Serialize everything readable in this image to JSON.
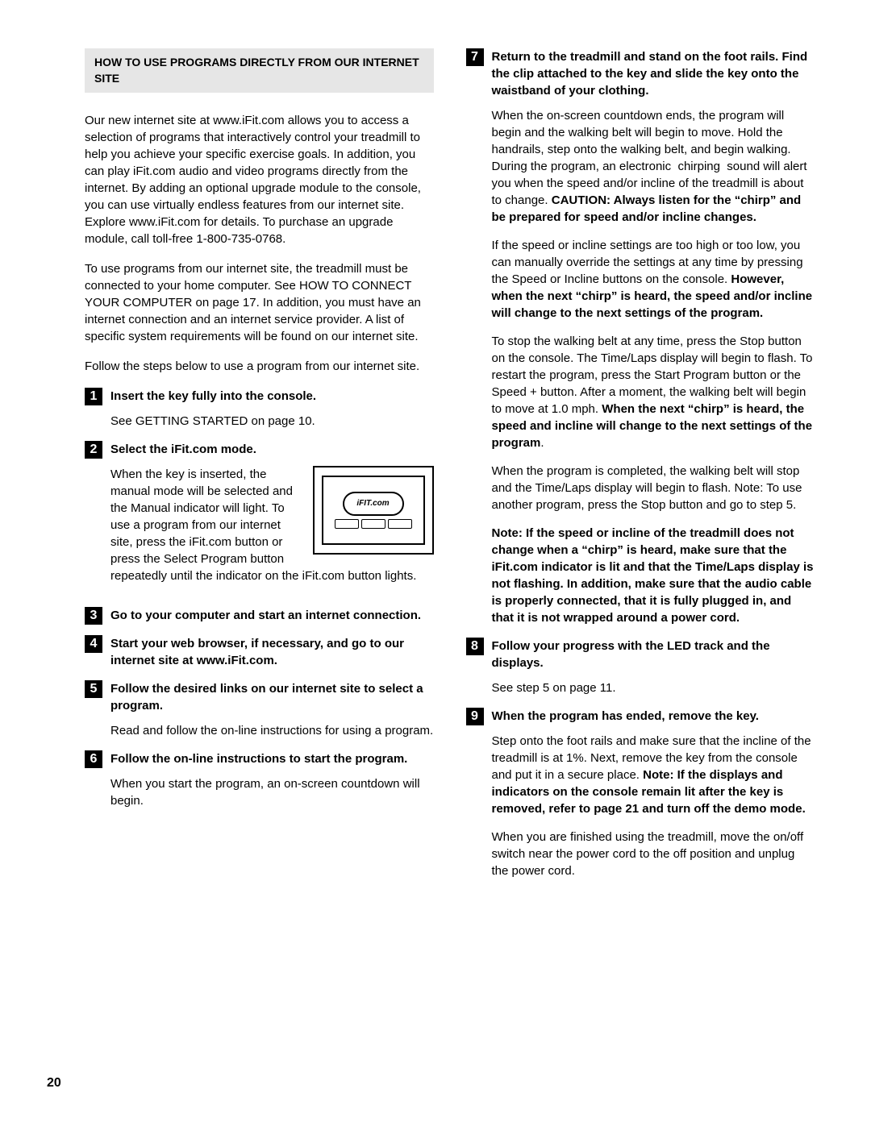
{
  "page_number": "20",
  "header": "HOW TO USE PROGRAMS DIRECTLY FROM OUR INTERNET SITE",
  "intro1": "Our new internet site at www.iFit.com allows you to access a selection of programs that interactively control your treadmill to help you achieve your specific exercise goals. In addition, you can play iFit.com audio and video programs directly from the internet. By adding an optional upgrade module to the console, you can use virtually endless features from our internet site. Explore www.iFit.com for details. To purchase an upgrade module, call toll-free 1-800-735-0768.",
  "intro2": "To use programs from our internet site, the treadmill must be connected to your home computer. See HOW TO CONNECT YOUR COMPUTER on page 17. In addition, you must have an internet connection and an internet service provider. A list of specific system requirements will be found on our internet site.",
  "intro3": "Follow the steps below to use a program from our internet site.",
  "steps": {
    "s1": {
      "n": "1",
      "title": "Insert the key fully into the console.",
      "body": "See GETTING STARTED on page 10."
    },
    "s2": {
      "n": "2",
      "title": "Select the iFit.com mode.",
      "body": "When the key is inserted, the manual mode will be selected and the Manual indicator will light. To use a program from our internet site, press the iFit.com button or press the Select Program button repeatedly until the indicator on the iFit.com button lights."
    },
    "s3": {
      "n": "3",
      "title": "Go to your computer and start an internet connection."
    },
    "s4": {
      "n": "4",
      "title": "Start your web browser, if necessary, and go to our internet site at www.iFit.com."
    },
    "s5": {
      "n": "5",
      "title": "Follow the desired links on our internet site to select a program.",
      "body": "Read and follow the on-line instructions for using a program."
    },
    "s6": {
      "n": "6",
      "title": "Follow the on-line instructions to start the program.",
      "body": "When you start the program, an on-screen countdown will begin."
    },
    "s7": {
      "n": "7",
      "title": "Return to the treadmill and stand on the foot rails. Find the clip attached to the key and slide the key onto the waistband of your clothing.",
      "p1a": "When the on-screen countdown ends, the program will begin and the walking belt will begin to move. Hold the handrails, step onto the walking belt, and begin walking. During the program, an electronic  chirping  sound will alert you when the speed and/or incline of the treadmill is about to change. ",
      "p1b": "CAUTION: Always listen for the “chirp” and be prepared for speed and/or incline changes.",
      "p2a": "If the speed or incline settings are too high or too low, you can manually override the settings at any time by pressing the Speed or Incline buttons on the console. ",
      "p2b": "However, when the next “chirp” is heard, the speed and/or incline will change to the next settings of the program.",
      "p3a": "To stop the walking belt at any time, press the Stop button on the console. The Time/Laps display will begin to flash. To restart the program, press the Start Program button or the Speed + button. After a moment, the walking belt will begin to move at 1.0 mph. ",
      "p3b": "When the next “chirp” is heard, the speed and incline will change to the next settings of the program",
      "p3c": ".",
      "p4": "When the program is completed, the walking belt will stop and the Time/Laps display will begin to flash. Note: To use another program, press the Stop button and go to step 5.",
      "p5": "Note: If the speed or incline of the treadmill does not change when a “chirp” is heard, make sure that the iFit.com indicator is lit and that the Time/Laps display is not flashing. In addition, make sure that the audio cable is properly connected, that it is fully plugged in, and that it is not wrapped around a power cord."
    },
    "s8": {
      "n": "8",
      "title": "Follow your progress with the LED track and the displays.",
      "body": "See step 5 on page 11."
    },
    "s9": {
      "n": "9",
      "title": "When the program has ended, remove the key.",
      "p1a": "Step onto the foot rails and make sure that the incline of the treadmill is at 1%. Next, remove the key from the console and put it in a secure place. ",
      "p1b": "Note: If the displays and indicators on the console remain lit after the key is removed, refer to page 21 and turn off the demo mode.",
      "p2": "When you are finished using the treadmill, move the on/off switch near the power cord to the off position and unplug the power cord."
    }
  },
  "console_label": "iFIT.com"
}
